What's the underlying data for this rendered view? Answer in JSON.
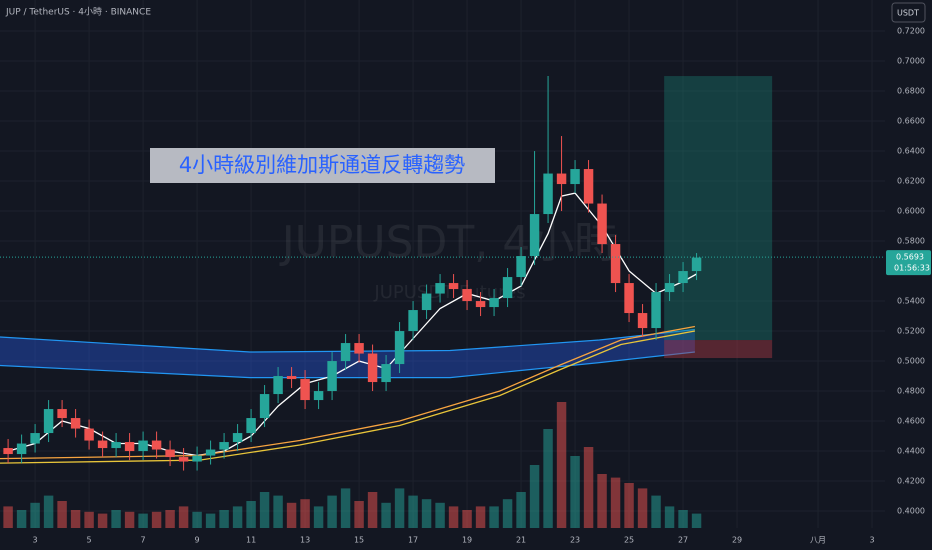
{
  "chart_data": {
    "type": "candlestick",
    "header": "JUP / TetherUS · 4小時 · BINANCE",
    "currency_button": "USDT",
    "watermark": "JUPUSDT, 4小時",
    "watermark_sub": "JUPUSDT Futures",
    "annotation": "4小時級別維加斯通道反轉趨勢",
    "up_color": "#26a69a",
    "down_color": "#ef5350",
    "xlim": [
      1.7,
      34.48
    ],
    "ylim": [
      0.3887,
      0.7407
    ],
    "xticks": [
      3,
      5,
      7,
      9,
      11,
      13,
      15,
      17,
      19,
      21,
      23,
      25,
      27,
      29,
      {
        "value": 32,
        "label": "八月"
      },
      {
        "value": 34,
        "label": "3"
      }
    ],
    "yticks": [
      {
        "value": 0.4,
        "label": "0.4000"
      },
      {
        "value": 0.42,
        "label": "0.4200"
      },
      {
        "value": 0.44,
        "label": "0.4400"
      },
      {
        "value": 0.46,
        "label": "0.4600"
      },
      {
        "value": 0.48,
        "label": "0.4800"
      },
      {
        "value": 0.5,
        "label": "0.5000"
      },
      {
        "value": 0.52,
        "label": "0.5200"
      },
      {
        "value": 0.54,
        "label": "0.5400"
      },
      {
        "value": 0.58,
        "label": "0.5800"
      },
      {
        "value": 0.6,
        "label": "0.6000"
      },
      {
        "value": 0.62,
        "label": "0.6200"
      },
      {
        "value": 0.64,
        "label": "0.6400"
      },
      {
        "value": 0.66,
        "label": "0.6600"
      },
      {
        "value": 0.68,
        "label": "0.6800"
      },
      {
        "value": 0.7,
        "label": "0.7000"
      },
      {
        "value": 0.72,
        "label": "0.7200"
      }
    ],
    "x": [
      2,
      2.5,
      3,
      3.5,
      4,
      4.5,
      5,
      5.5,
      6,
      6.5,
      7,
      7.5,
      8,
      8.5,
      9,
      9.5,
      10,
      10.5,
      11,
      11.5,
      12,
      12.5,
      13,
      13.5,
      14,
      14.5,
      15,
      15.5,
      16,
      16.5,
      17,
      17.5,
      18,
      18.5,
      19,
      19.5,
      20,
      20.5,
      21,
      21.5,
      22,
      22.5,
      23,
      23.5,
      24,
      24.5,
      25,
      25.5,
      26,
      26.5,
      27,
      27.5
    ],
    "open": [
      0.442,
      0.438,
      0.445,
      0.452,
      0.468,
      0.462,
      0.455,
      0.447,
      0.442,
      0.446,
      0.44,
      0.447,
      0.441,
      0.436,
      0.433,
      0.437,
      0.441,
      0.446,
      0.452,
      0.462,
      0.478,
      0.49,
      0.488,
      0.474,
      0.48,
      0.5,
      0.512,
      0.505,
      0.486,
      0.498,
      0.52,
      0.534,
      0.545,
      0.552,
      0.548,
      0.54,
      0.536,
      0.542,
      0.556,
      0.57,
      0.598,
      0.625,
      0.618,
      0.628,
      0.605,
      0.578,
      0.552,
      0.532,
      0.522,
      0.546,
      0.552,
      0.56
    ],
    "high": [
      0.448,
      0.451,
      0.458,
      0.474,
      0.474,
      0.468,
      0.461,
      0.453,
      0.452,
      0.452,
      0.453,
      0.453,
      0.447,
      0.442,
      0.443,
      0.447,
      0.452,
      0.458,
      0.468,
      0.484,
      0.496,
      0.496,
      0.494,
      0.486,
      0.506,
      0.518,
      0.518,
      0.511,
      0.504,
      0.526,
      0.54,
      0.551,
      0.558,
      0.558,
      0.554,
      0.546,
      0.548,
      0.562,
      0.576,
      0.64,
      0.69,
      0.65,
      0.634,
      0.634,
      0.611,
      0.584,
      0.558,
      0.538,
      0.552,
      0.558,
      0.566,
      0.572
    ],
    "low": [
      0.432,
      0.432,
      0.439,
      0.446,
      0.456,
      0.449,
      0.441,
      0.436,
      0.436,
      0.434,
      0.434,
      0.435,
      0.43,
      0.427,
      0.427,
      0.431,
      0.435,
      0.44,
      0.446,
      0.456,
      0.472,
      0.482,
      0.468,
      0.468,
      0.474,
      0.494,
      0.499,
      0.48,
      0.48,
      0.492,
      0.514,
      0.528,
      0.539,
      0.542,
      0.534,
      0.53,
      0.53,
      0.536,
      0.55,
      0.564,
      0.592,
      0.6,
      0.612,
      0.599,
      0.572,
      0.546,
      0.526,
      0.516,
      0.514,
      0.54,
      0.546,
      0.554
    ],
    "close": [
      0.438,
      0.445,
      0.452,
      0.468,
      0.462,
      0.455,
      0.447,
      0.442,
      0.446,
      0.44,
      0.447,
      0.441,
      0.436,
      0.433,
      0.437,
      0.441,
      0.446,
      0.452,
      0.462,
      0.478,
      0.49,
      0.488,
      0.474,
      0.48,
      0.5,
      0.512,
      0.505,
      0.486,
      0.498,
      0.52,
      0.534,
      0.545,
      0.552,
      0.548,
      0.54,
      0.536,
      0.542,
      0.556,
      0.57,
      0.598,
      0.625,
      0.618,
      0.628,
      0.605,
      0.578,
      0.552,
      0.532,
      0.522,
      0.546,
      0.552,
      0.56,
      0.569
    ],
    "volume": [
      12,
      10,
      14,
      18,
      15,
      10,
      9,
      8,
      10,
      9,
      8,
      9,
      10,
      12,
      9,
      8,
      10,
      12,
      15,
      20,
      18,
      14,
      16,
      12,
      18,
      22,
      15,
      20,
      14,
      22,
      18,
      16,
      14,
      12,
      10,
      12,
      12,
      16,
      20,
      35,
      55,
      70,
      40,
      45,
      30,
      28,
      25,
      22,
      18,
      12,
      10,
      8
    ],
    "channel": {
      "color": "#2962ff",
      "x": [
        1.7,
        10.96,
        18.37,
        23.9,
        27.44
      ],
      "upper": [
        0.516,
        0.506,
        0.507,
        0.514,
        0.521
      ],
      "lower": [
        0.497,
        0.489,
        0.489,
        0.499,
        0.506
      ]
    },
    "overlays": [
      {
        "color": "#ffffff",
        "x": [
          2,
          3,
          4,
          5,
          6,
          7,
          8,
          9,
          10,
          11,
          12,
          13,
          14,
          15,
          16,
          17,
          18,
          19,
          20,
          21,
          22,
          22.5,
          23,
          24,
          25,
          26,
          27,
          27.5
        ],
        "values": [
          0.44,
          0.445,
          0.46,
          0.455,
          0.445,
          0.445,
          0.44,
          0.437,
          0.44,
          0.45,
          0.47,
          0.485,
          0.49,
          0.5,
          0.495,
          0.515,
          0.535,
          0.545,
          0.54,
          0.55,
          0.585,
          0.61,
          0.612,
          0.59,
          0.56,
          0.545,
          0.553,
          0.558
        ]
      },
      {
        "color": "#f7a440",
        "x": [
          1.7,
          9.1,
          12.8,
          16.5,
          20.2,
          22.4,
          24.7,
          27.44
        ],
        "values": [
          0.435,
          0.437,
          0.447,
          0.46,
          0.48,
          0.497,
          0.514,
          0.523
        ]
      },
      {
        "color": "#e8c53a",
        "x": [
          1.7,
          9.1,
          12.8,
          16.5,
          20.2,
          22.4,
          24.7,
          27.44
        ],
        "values": [
          0.432,
          0.434,
          0.444,
          0.457,
          0.477,
          0.494,
          0.511,
          0.52
        ]
      }
    ],
    "position": {
      "x_start": 26.3,
      "x_end": 30.3,
      "target": 0.69,
      "entry": 0.514,
      "stop": 0.502
    },
    "last_price": {
      "value": 0.5693,
      "countdown": "01:56:33"
    }
  }
}
